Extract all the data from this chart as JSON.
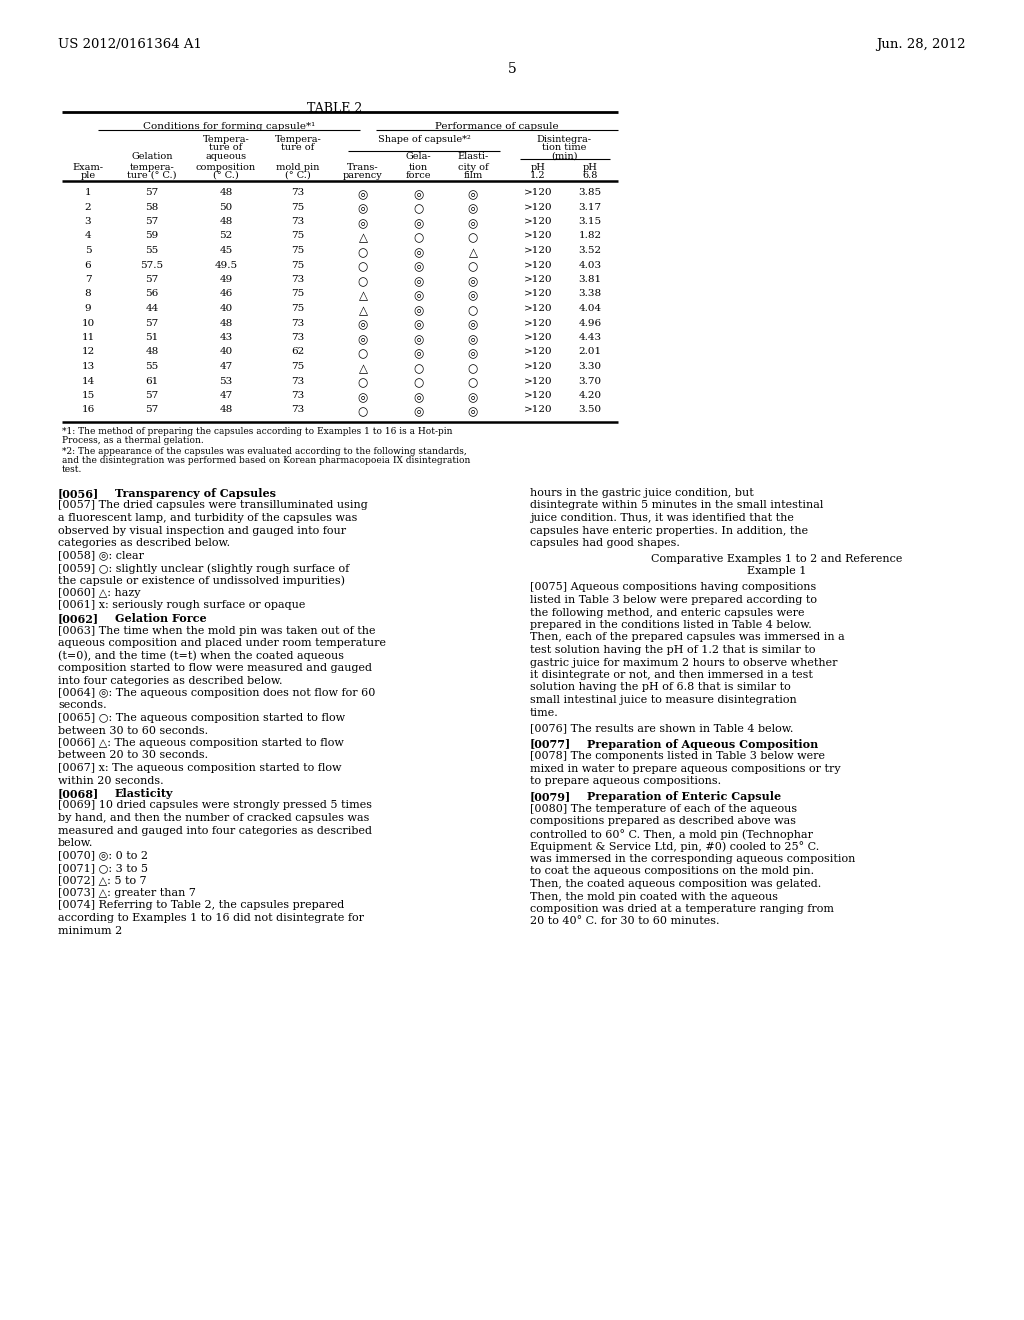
{
  "page_number": "5",
  "patent_number": "US 2012/0161364 A1",
  "date": "Jun. 28, 2012",
  "table_title": "TABLE 2",
  "table_data": [
    [
      1,
      57,
      48,
      73,
      "◎",
      "◎",
      "◎",
      ">120",
      "3.85"
    ],
    [
      2,
      58,
      50,
      75,
      "◎",
      "○",
      "◎",
      ">120",
      "3.17"
    ],
    [
      3,
      57,
      48,
      73,
      "◎",
      "◎",
      "◎",
      ">120",
      "3.15"
    ],
    [
      4,
      59,
      52,
      75,
      "△",
      "○",
      "○",
      ">120",
      "1.82"
    ],
    [
      5,
      55,
      45,
      75,
      "○",
      "◎",
      "△",
      ">120",
      "3.52"
    ],
    [
      6,
      "57.5",
      "49.5",
      75,
      "○",
      "◎",
      "○",
      ">120",
      "4.03"
    ],
    [
      7,
      57,
      49,
      73,
      "○",
      "◎",
      "◎",
      ">120",
      "3.81"
    ],
    [
      8,
      56,
      46,
      75,
      "△",
      "◎",
      "◎",
      ">120",
      "3.38"
    ],
    [
      9,
      44,
      40,
      75,
      "△",
      "◎",
      "○",
      ">120",
      "4.04"
    ],
    [
      10,
      57,
      48,
      73,
      "◎",
      "◎",
      "◎",
      ">120",
      "4.96"
    ],
    [
      11,
      51,
      43,
      73,
      "◎",
      "◎",
      "◎",
      ">120",
      "4.43"
    ],
    [
      12,
      48,
      40,
      62,
      "○",
      "◎",
      "◎",
      ">120",
      "2.01"
    ],
    [
      13,
      55,
      47,
      75,
      "△",
      "○",
      "○",
      ">120",
      "3.30"
    ],
    [
      14,
      61,
      53,
      73,
      "○",
      "○",
      "○",
      ">120",
      "3.70"
    ],
    [
      15,
      57,
      47,
      73,
      "◎",
      "◎",
      "◎",
      ">120",
      "4.20"
    ],
    [
      16,
      57,
      48,
      73,
      "○",
      "◎",
      "◎",
      ">120",
      "3.50"
    ]
  ],
  "footnote1": "*1: The method of preparing the capsules according to Examples 1 to 16 is a Hot-pin Process, as a thermal gelation.",
  "footnote2": "*2: The appearance of the capsules was evaluated according to the following standards, and the disintegration was performed based on Korean pharmacopoeia IX disintegration test.",
  "left_col_paras": [
    {
      "tag": "[0056]",
      "bold_text": "Transparency of Capsules",
      "body": null
    },
    {
      "tag": "[0057]",
      "bold_text": null,
      "body": "The dried capsules were transilluminated using a fluorescent lamp, and turbidity of the capsules was observed by visual inspection and gauged into four categories as described below."
    },
    {
      "tag": "[0058]",
      "bold_text": null,
      "body": "◎: clear"
    },
    {
      "tag": "[0059]",
      "bold_text": null,
      "body": "○: slightly unclear (slightly rough surface of the capsule or existence of undissolved impurities)"
    },
    {
      "tag": "[0060]",
      "bold_text": null,
      "body": "△: hazy"
    },
    {
      "tag": "[0061]",
      "bold_text": null,
      "body": "x: seriously rough surface or opaque"
    },
    {
      "tag": "[0062]",
      "bold_text": "Gelation Force",
      "body": null
    },
    {
      "tag": "[0063]",
      "bold_text": null,
      "body": "The time when the mold pin was taken out of the aqueous composition and placed under room temperature (t=0), and the time (t=t) when the coated aqueous composition started to flow were measured and gauged into four categories as described below."
    },
    {
      "tag": "[0064]",
      "bold_text": null,
      "body": "◎: The aqueous composition does not flow for 60 seconds."
    },
    {
      "tag": "[0065]",
      "bold_text": null,
      "body": "○: The aqueous composition started to flow between 30 to 60 seconds."
    },
    {
      "tag": "[0066]",
      "bold_text": null,
      "body": "△: The aqueous composition started to flow between 20 to 30 seconds."
    },
    {
      "tag": "[0067]",
      "bold_text": null,
      "body": "x: The aqueous composition started to flow within 20 seconds."
    },
    {
      "tag": "[0068]",
      "bold_text": "Elasticity",
      "body": null
    },
    {
      "tag": "[0069]",
      "bold_text": null,
      "body": "10 dried capsules were strongly pressed 5 times by hand, and then the number of cracked capsules was measured and gauged into four categories as described below."
    },
    {
      "tag": "[0070]",
      "bold_text": null,
      "body": "◎: 0 to 2"
    },
    {
      "tag": "[0071]",
      "bold_text": null,
      "body": "○: 3 to 5"
    },
    {
      "tag": "[0072]",
      "bold_text": null,
      "body": "△: 5 to 7"
    },
    {
      "tag": "[0073]",
      "bold_text": null,
      "body": "△: greater than 7"
    },
    {
      "tag": "[0074]",
      "bold_text": null,
      "body": "Referring to Table 2, the capsules prepared according to Examples 1 to 16 did not disintegrate for minimum 2"
    }
  ],
  "right_col_paras": [
    {
      "tag": null,
      "bold_text": null,
      "body": "hours in the gastric juice condition, but disintegrate within 5 minutes in the small intestinal juice condition. Thus, it was identified that the capsules have enteric properties. In addition, the capsules had good shapes.",
      "is_heading": false
    },
    {
      "tag": null,
      "bold_text": null,
      "body": "Comparative Examples 1 to 2 and Reference\nExample 1",
      "is_heading": true
    },
    {
      "tag": "[0075]",
      "bold_text": null,
      "body": "Aqueous compositions having compositions listed in Table 3 below were prepared according to the following method, and enteric capsules were prepared in the conditions listed in Table 4 below. Then, each of the prepared capsules was immersed in a test solution having the pH of 1.2 that is similar to gastric juice for maximum 2 hours to observe whether it disintegrate or not, and then immersed in a test solution having the pH of 6.8 that is similar to small intestinal juice to measure disintegration time.",
      "is_heading": false
    },
    {
      "tag": "[0076]",
      "bold_text": null,
      "body": "The results are shown in Table 4 below.",
      "is_heading": false
    },
    {
      "tag": "[0077]",
      "bold_text": "Preparation of Aqueous Composition",
      "body": null,
      "is_heading": false
    },
    {
      "tag": "[0078]",
      "bold_text": null,
      "body": "The components listed in Table 3 below were mixed in water to prepare aqueous compositions or try to prepare aqueous compositions.",
      "is_heading": false
    },
    {
      "tag": "[0079]",
      "bold_text": "Preparation of Enteric Capsule",
      "body": null,
      "is_heading": false
    },
    {
      "tag": "[0080]",
      "bold_text": null,
      "body": "The temperature of each of the aqueous compositions prepared as described above was controlled to 60° C. Then, a mold pin (Technophar Equipment & Service Ltd, pin, #0) cooled to 25° C. was immersed in the corresponding aqueous composition to coat the aqueous compositions on the mold pin. Then, the coated aqueous composition was gelated. Then, the mold pin coated with the aqueous composition was dried at a temperature ranging from 20 to 40° C. for 30 to 60 minutes.",
      "is_heading": false
    }
  ]
}
